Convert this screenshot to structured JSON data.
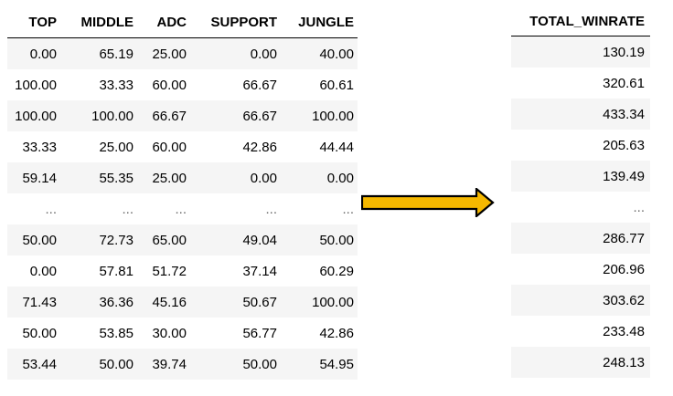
{
  "left_table": {
    "columns": [
      "TOP",
      "MIDDLE",
      "ADC",
      "SUPPORT",
      "JUNGLE"
    ],
    "rows": [
      [
        "0.00",
        "65.19",
        "25.00",
        "0.00",
        "40.00"
      ],
      [
        "100.00",
        "33.33",
        "60.00",
        "66.67",
        "60.61"
      ],
      [
        "100.00",
        "100.00",
        "66.67",
        "66.67",
        "100.00"
      ],
      [
        "33.33",
        "25.00",
        "60.00",
        "42.86",
        "44.44"
      ],
      [
        "59.14",
        "55.35",
        "25.00",
        "0.00",
        "0.00"
      ],
      [
        "...",
        "...",
        "...",
        "...",
        "..."
      ],
      [
        "50.00",
        "72.73",
        "65.00",
        "49.04",
        "50.00"
      ],
      [
        "0.00",
        "57.81",
        "51.72",
        "37.14",
        "60.29"
      ],
      [
        "71.43",
        "36.36",
        "45.16",
        "50.67",
        "100.00"
      ],
      [
        "50.00",
        "53.85",
        "30.00",
        "56.77",
        "42.86"
      ],
      [
        "53.44",
        "50.00",
        "39.74",
        "50.00",
        "54.95"
      ]
    ]
  },
  "right_table": {
    "columns": [
      "TOTAL_WINRATE"
    ],
    "rows": [
      [
        "130.19"
      ],
      [
        "320.61"
      ],
      [
        "433.34"
      ],
      [
        "205.63"
      ],
      [
        "139.49"
      ],
      [
        "..."
      ],
      [
        "286.77"
      ],
      [
        "206.96"
      ],
      [
        "303.62"
      ],
      [
        "233.48"
      ],
      [
        "248.13"
      ]
    ]
  },
  "arrow": {
    "icon": "right-arrow-icon",
    "fill_color": "#f5b800",
    "stroke_color": "#000000"
  }
}
